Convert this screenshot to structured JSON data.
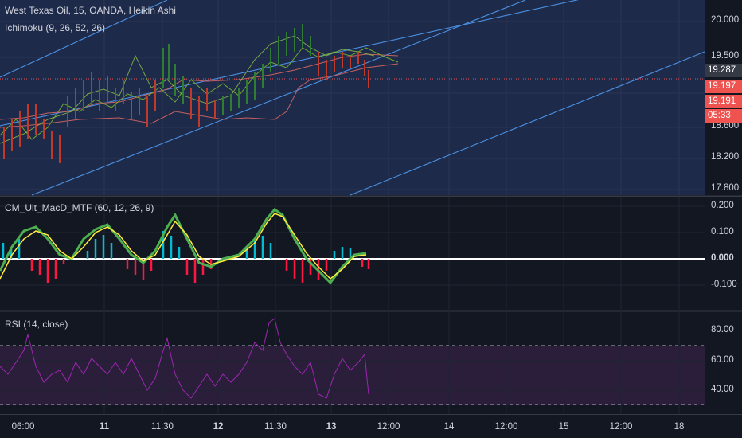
{
  "price_pane": {
    "title": "West Texas Oil, 15, OANDA, Heikin Ashi",
    "indicator": "Ichimoku (9, 26, 52, 26)",
    "y_axis": [
      "20.000",
      "19.500",
      "18.600",
      "18.200",
      "17.800"
    ],
    "current_price": "19.287",
    "bid": "19.197",
    "ask": "19.191",
    "countdown": "05:33"
  },
  "macd_pane": {
    "title": "CM_Ult_MacD_MTF (60, 12, 26, 9)",
    "y_axis": [
      "0.200",
      "0.100",
      "0.000",
      "-0.100"
    ]
  },
  "rsi_pane": {
    "title": "RSI (14, close)",
    "y_axis": [
      "80.00",
      "60.00",
      "40.00"
    ]
  },
  "time_axis": [
    "06:00",
    "11",
    "11:30",
    "12",
    "11:30",
    "13",
    "12:00",
    "14",
    "12:00",
    "15",
    "12:00",
    "18"
  ],
  "colors": {
    "background": "#131722",
    "price_pane_bg": "#1e2a4a",
    "current_price": "#363a45",
    "bid_ask": "#ef5350",
    "rsi_line": "#9c27b0",
    "rsi_band": "#2a1e3a",
    "macd_up": "#00bcd4",
    "macd_down": "#ff1744",
    "trend_lines": "#4a90e2"
  }
}
